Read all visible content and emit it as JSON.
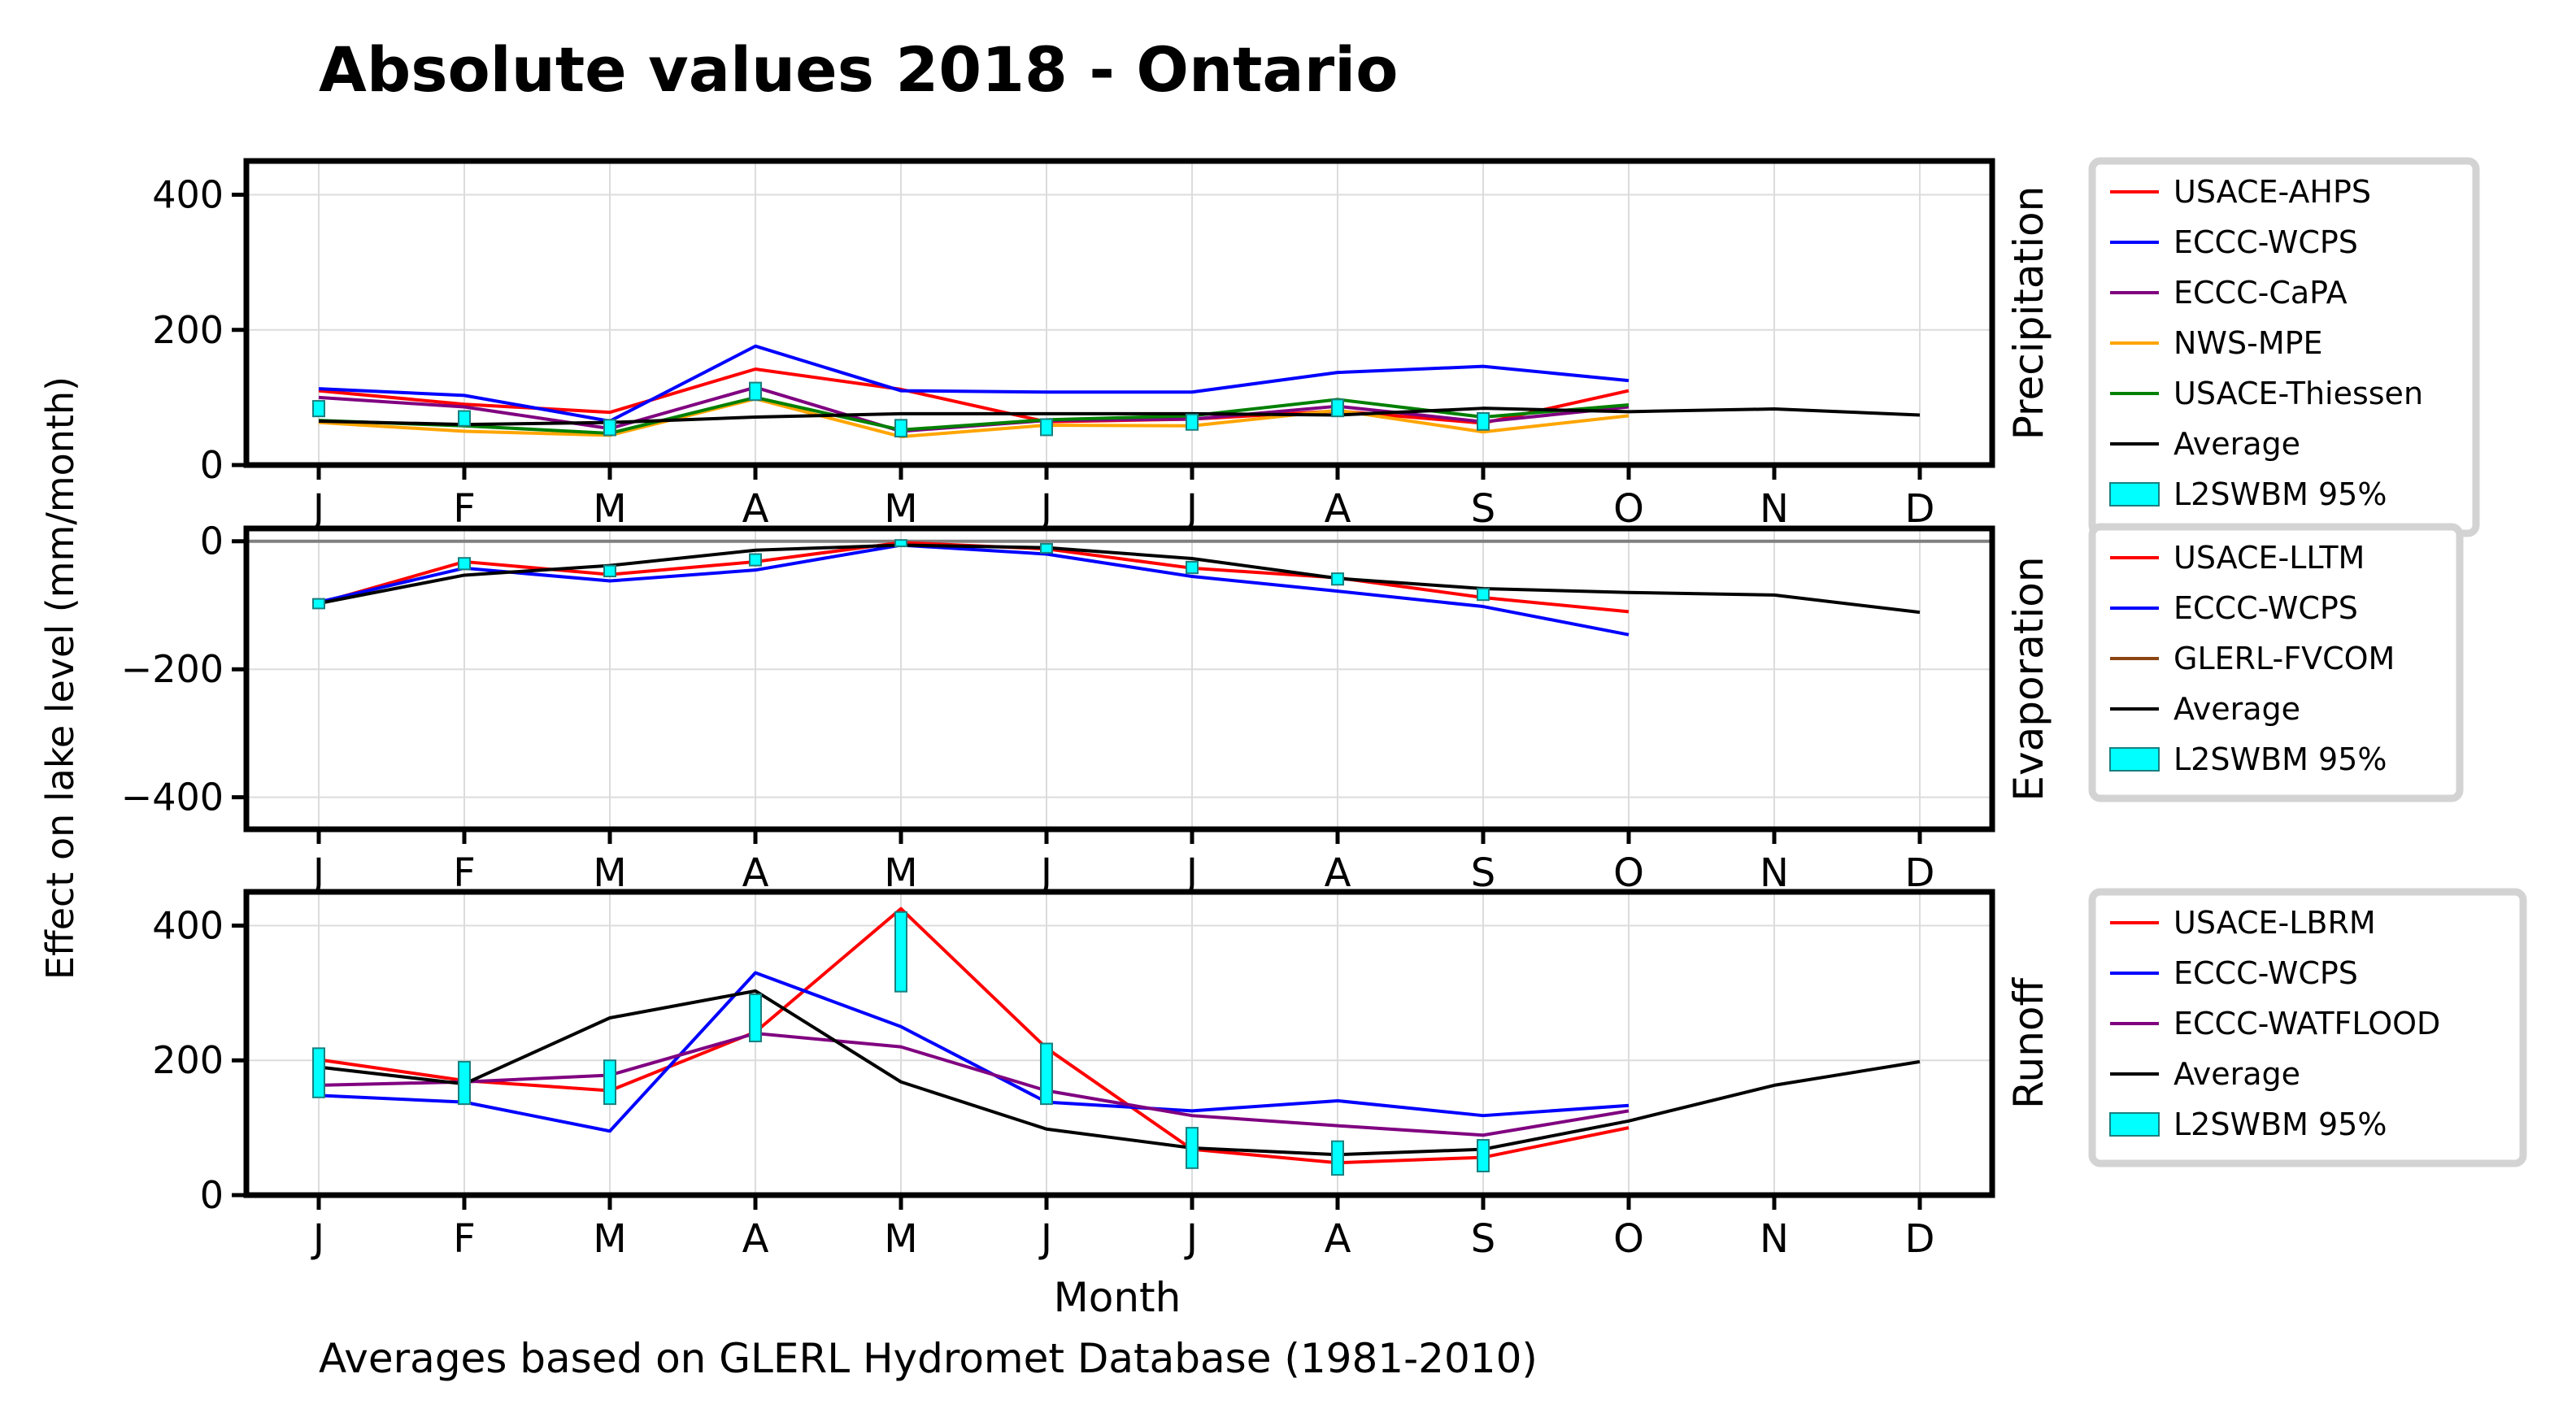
{
  "chart_data": {
    "type": "line",
    "title": "Absolute values 2018 - Ontario",
    "ylabel": "Effect on lake level (mm/month)",
    "xlabel": "Month",
    "footnote": "Averages based on GLERL Hydromet Database (1981-2010)",
    "categories": [
      "J",
      "F",
      "M",
      "A",
      "M",
      "J",
      "J",
      "A",
      "S",
      "O",
      "N",
      "D"
    ],
    "panels": [
      {
        "label": "Precipitation",
        "ylim": [
          0,
          450
        ],
        "yticks": [
          0,
          200,
          400
        ],
        "series": [
          {
            "name": "USACE-AHPS",
            "color": "#ff0000",
            "values": [
              110,
              90,
              78,
              142,
              112,
              64,
              68,
              80,
              62,
              110
            ]
          },
          {
            "name": "ECCC-WCPS",
            "color": "#0000ff",
            "values": [
              113,
              103,
              65,
              176,
              110,
              108,
              108,
              137,
              146,
              125
            ]
          },
          {
            "name": "ECCC-CaPA",
            "color": "#800080",
            "values": [
              100,
              86,
              54,
              115,
              50,
              66,
              68,
              87,
              64,
              86
            ]
          },
          {
            "name": "NWS-MPE",
            "color": "#ffa500",
            "values": [
              63,
              50,
              44,
              98,
              42,
              59,
              58,
              81,
              49,
              73
            ]
          },
          {
            "name": "USACE-Thiessen",
            "color": "#008000",
            "values": [
              66,
              58,
              47,
              100,
              52,
              67,
              73,
              97,
              71,
              89
            ]
          },
          {
            "name": "Average",
            "color": "#000000",
            "values": [
              65,
              60,
              63,
              71,
              76,
              76,
              76,
              74,
              84,
              79,
              83,
              74
            ]
          }
        ],
        "range_name": "L2SWBM 95%",
        "ranges": [
          [
            72,
            95
          ],
          [
            58,
            80
          ],
          [
            44,
            67
          ],
          [
            96,
            122
          ],
          [
            42,
            67
          ],
          [
            44,
            68
          ],
          [
            52,
            75
          ],
          [
            72,
            97
          ],
          [
            52,
            77
          ]
        ]
      },
      {
        "label": "Evaporation",
        "ylim": [
          -450,
          20
        ],
        "yticks": [
          0,
          -200,
          -400
        ],
        "series": [
          {
            "name": "USACE-LLTM",
            "color": "#ff0000",
            "values": [
              -97,
              -32,
              -52,
              -32,
              -2,
              -12,
              -42,
              -57,
              -88,
              -110
            ]
          },
          {
            "name": "ECCC-WCPS",
            "color": "#0000ff",
            "values": [
              -95,
              -42,
              -62,
              -45,
              -6,
              -20,
              -55,
              -78,
              -102,
              -146
            ]
          },
          {
            "name": "GLERL-FVCOM",
            "color": "#8b4513",
            "values": []
          },
          {
            "name": "Average",
            "color": "#000000",
            "values": [
              -97,
              -53,
              -38,
              -14,
              -6,
              -10,
              -27,
              -58,
              -74,
              -80,
              -84,
              -111
            ]
          }
        ],
        "range_name": "L2SWBM 95%",
        "ranges": [
          [
            -105,
            -90
          ],
          [
            -44,
            -26
          ],
          [
            -55,
            -38
          ],
          [
            -38,
            -20
          ],
          [
            -8,
            2
          ],
          [
            -18,
            -4
          ],
          [
            -50,
            -32
          ],
          [
            -68,
            -50
          ],
          [
            -92,
            -74
          ]
        ]
      },
      {
        "label": "Runoff",
        "ylim": [
          0,
          450
        ],
        "yticks": [
          0,
          200,
          400
        ],
        "series": [
          {
            "name": "USACE-LBRM",
            "color": "#ff0000",
            "values": [
              201,
              170,
              155,
              242,
              425,
              218,
              68,
              48,
              56,
              100
            ]
          },
          {
            "name": "ECCC-WCPS",
            "color": "#0000ff",
            "values": [
              148,
              138,
              95,
              330,
              250,
              138,
              125,
              140,
              118,
              133
            ]
          },
          {
            "name": "ECCC-WATFLOOD",
            "color": "#800080",
            "values": [
              163,
              168,
              178,
              240,
              220,
              155,
              118,
              103,
              89,
              125
            ]
          },
          {
            "name": "Average",
            "color": "#000000",
            "values": [
              190,
              165,
              263,
              303,
              168,
              98,
              70,
              60,
              68,
              110,
              163,
              198
            ]
          }
        ],
        "range_name": "L2SWBM 95%",
        "ranges": [
          [
            145,
            218
          ],
          [
            135,
            198
          ],
          [
            135,
            200
          ],
          [
            228,
            298
          ],
          [
            302,
            420
          ],
          [
            135,
            225
          ],
          [
            40,
            100
          ],
          [
            30,
            80
          ],
          [
            35,
            82
          ],
          [
            null,
            null
          ]
        ]
      }
    ]
  }
}
